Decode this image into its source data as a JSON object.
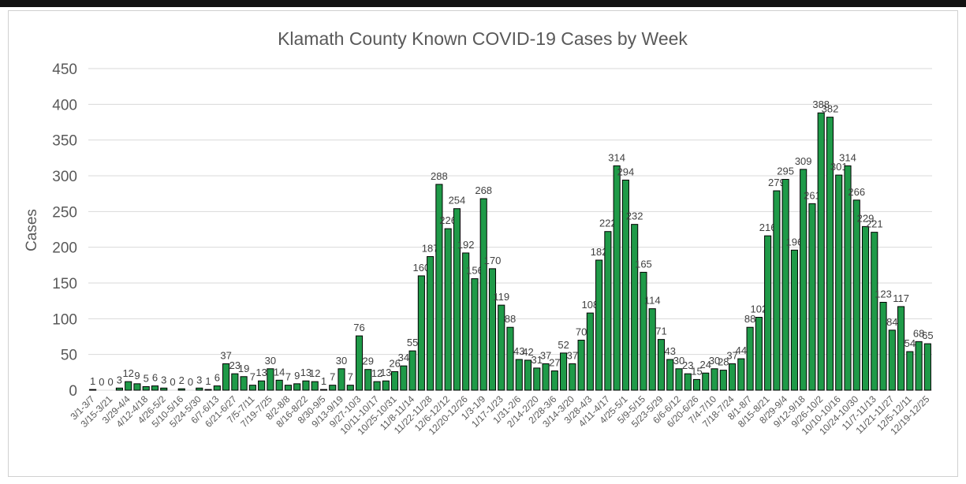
{
  "chart_data": {
    "type": "bar",
    "title": "Klamath County Known COVID-19 Cases by Week",
    "y_label": "Cases",
    "categories": [
      "3/1-3/7",
      null,
      "3/15-3/21",
      null,
      "3/29-4/4",
      null,
      "4/12-4/18",
      null,
      "4/26-5/2",
      null,
      "5/10-5/16",
      null,
      "5/24-5/30",
      null,
      "6/7-6/13",
      null,
      "6/21-6/27",
      null,
      "7/5-7/11",
      null,
      "7/19-7/25",
      null,
      "8/2-8/8",
      null,
      "8/16-8/22",
      null,
      "8/30-9/5",
      null,
      "9/13-9/19",
      null,
      "9/27-10/3",
      null,
      "10/11-10/17",
      null,
      "10/25-10/31",
      null,
      "11/8-11/14",
      null,
      "11/22-11/28",
      null,
      "12/6-12/12",
      null,
      "12/20-12/26",
      null,
      "1/3-1/9",
      null,
      "1/17-1/23",
      null,
      "1/31-2/6",
      null,
      "2/14-2/20",
      null,
      "2/28-3/6",
      null,
      "3/14-3/20",
      null,
      "3/28-4/3",
      null,
      "4/11-4/17",
      null,
      "4/25-5/1",
      null,
      "5/9-5/15",
      null,
      "5/23-5/29",
      null,
      "6/6-6/12",
      null,
      "6/20-6/26",
      null,
      "7/4-7/10",
      null,
      "7/18-7/24",
      null,
      "8/1-8/7",
      null,
      "8/15-8/21",
      null,
      "8/29-9/4",
      null,
      "9/12-9/18",
      null,
      "9/26-10/2",
      null,
      "10/10-10/16",
      null,
      "10/24-10/30",
      null,
      "11/7-11/13",
      null,
      "11/21-11/27",
      null,
      "12/5-12/11",
      null,
      "12/19-12/25"
    ],
    "values": [
      1,
      0,
      0,
      3,
      12,
      9,
      5,
      6,
      3,
      0,
      2,
      0,
      3,
      1,
      6,
      37,
      23,
      19,
      7,
      13,
      30,
      14,
      7,
      9,
      13,
      12,
      1,
      7,
      30,
      7,
      76,
      29,
      12,
      13,
      26,
      34,
      55,
      160,
      187,
      288,
      226,
      254,
      192,
      156,
      268,
      170,
      119,
      88,
      43,
      42,
      31,
      37,
      27,
      52,
      37,
      70,
      108,
      182,
      222,
      314,
      294,
      232,
      165,
      114,
      71,
      43,
      30,
      23,
      15,
      24,
      30,
      28,
      37,
      44,
      88,
      102,
      216,
      279,
      295,
      196,
      309,
      261,
      388,
      382,
      301,
      314,
      266,
      229,
      221,
      123,
      84,
      117,
      54,
      68,
      65
    ],
    "color": "#1f9a48",
    "ylim": [
      0,
      450
    ],
    "yticks": [
      0,
      50,
      100,
      150,
      200,
      250,
      300,
      350,
      400,
      450
    ],
    "grid": true
  }
}
